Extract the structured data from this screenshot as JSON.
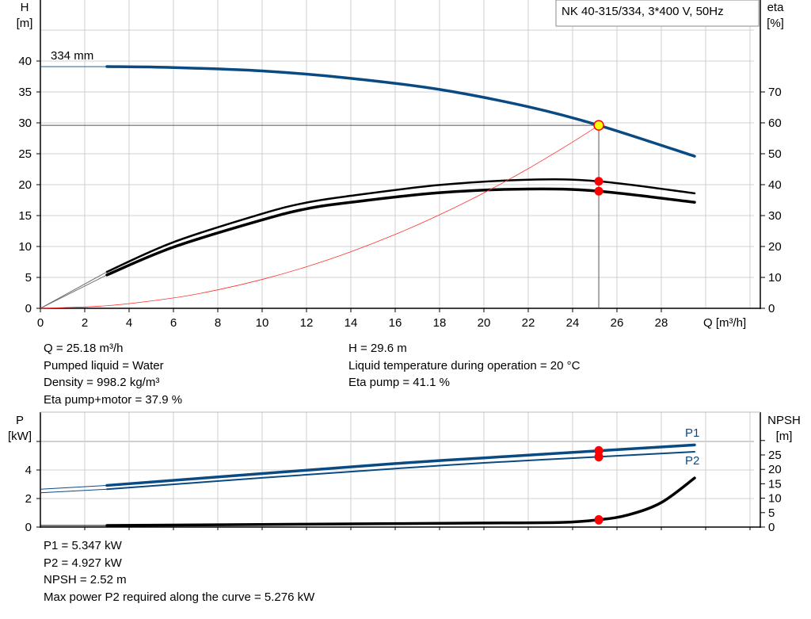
{
  "colors": {
    "head": "#0a4a82",
    "power": "#0a4a82",
    "eta": "#000000",
    "npsh": "#000000",
    "system": "#ff3030",
    "duty_point": "#ff0000",
    "duty_head_fill": "#ffff00",
    "grid": "#d0d0d0"
  },
  "chart_data": [
    {
      "type": "line",
      "title": "NK 40-315/334, 3*400 V, 50Hz",
      "xlabel": "Q [m³/h]",
      "ylabel_left": "H\n[m]",
      "ylabel_left_lines": [
        "H",
        "[m]"
      ],
      "ylabel_right_lines": [
        "eta",
        "[%]"
      ],
      "xlim": [
        0,
        32.2
      ],
      "ylim_left": [
        0,
        50
      ],
      "ylim_right": [
        0,
        100
      ],
      "x_ticks": [
        "0",
        "2",
        "4",
        "6",
        "8",
        "10",
        "12",
        "14",
        "16",
        "18",
        "20",
        "22",
        "24",
        "26",
        "28"
      ],
      "y_ticks_left": [
        "0",
        "5",
        "10",
        "15",
        "20",
        "25",
        "30",
        "35",
        "40"
      ],
      "y_ticks_right": [
        "0",
        "10",
        "20",
        "30",
        "40",
        "50",
        "60",
        "70"
      ],
      "grid": true,
      "impeller_label": "334 mm",
      "series": [
        {
          "key": "head",
          "axis": "left",
          "extension": [
            [
              0,
              39.1
            ],
            [
              3,
              39.1
            ]
          ],
          "points": [
            [
              3,
              39.1
            ],
            [
              6,
              38.95
            ],
            [
              10,
              38.4
            ],
            [
              14,
              37.2
            ],
            [
              18,
              35.4
            ],
            [
              22,
              32.6
            ],
            [
              25.18,
              29.6
            ],
            [
              29.5,
              24.6
            ]
          ]
        },
        {
          "key": "eta_pump",
          "axis": "right",
          "extension": [
            [
              0,
              0
            ],
            [
              3,
              11.8
            ]
          ],
          "points": [
            [
              3,
              11.8
            ],
            [
              6,
              21.4
            ],
            [
              10,
              30.6
            ],
            [
              12,
              34.2
            ],
            [
              14,
              36.4
            ],
            [
              18,
              39.9
            ],
            [
              22,
              41.6
            ],
            [
              25.18,
              41.1
            ],
            [
              29.5,
              37.2
            ]
          ]
        },
        {
          "key": "eta_pump_motor",
          "axis": "right",
          "extension": [
            [
              0,
              0
            ],
            [
              3,
              10.8
            ]
          ],
          "points": [
            [
              3,
              10.8
            ],
            [
              6,
              19.8
            ],
            [
              10,
              28.6
            ],
            [
              12,
              32.2
            ],
            [
              14,
              34.3
            ],
            [
              18,
              37.4
            ],
            [
              22,
              38.6
            ],
            [
              25.18,
              37.9
            ],
            [
              29.5,
              34.3
            ]
          ]
        },
        {
          "key": "system",
          "axis": "left",
          "points": [
            [
              0,
              0
            ],
            [
              3,
              0.42
            ],
            [
              6,
              1.68
            ],
            [
              8,
              2.99
            ],
            [
              10,
              4.67
            ],
            [
              12,
              6.72
            ],
            [
              14,
              9.15
            ],
            [
              16,
              11.95
            ],
            [
              18,
              15.13
            ],
            [
              20,
              18.67
            ],
            [
              22,
              22.6
            ],
            [
              24,
              26.9
            ],
            [
              25.18,
              29.6
            ]
          ]
        }
      ],
      "duty_point": {
        "q": 25.18,
        "h": 29.6,
        "eta_pump": 41.1,
        "eta_pump_motor": 37.9
      }
    },
    {
      "type": "line",
      "ylabel_left_lines": [
        "P",
        "[kW]"
      ],
      "ylabel_right_lines": [
        "NPSH",
        "[m]"
      ],
      "xlim": [
        0,
        32.2
      ],
      "ylim_left": [
        0,
        8
      ],
      "ylim_right": [
        0,
        40
      ],
      "y_ticks_left": [
        "0",
        "2",
        "4"
      ],
      "y_ticks_right": [
        "0",
        "5",
        "10",
        "15",
        "20",
        "25"
      ],
      "grid": true,
      "series": [
        {
          "key": "p1",
          "name": "P1",
          "axis": "left",
          "extension": [
            [
              0,
              2.65
            ],
            [
              3,
              2.92
            ]
          ],
          "points": [
            [
              3,
              2.92
            ],
            [
              10,
              3.75
            ],
            [
              16,
              4.45
            ],
            [
              20,
              4.85
            ],
            [
              25.18,
              5.347
            ],
            [
              29.5,
              5.76
            ]
          ]
        },
        {
          "key": "p2",
          "name": "P2",
          "axis": "left",
          "extension": [
            [
              0,
              2.4
            ],
            [
              3,
              2.65
            ]
          ],
          "points": [
            [
              3,
              2.65
            ],
            [
              10,
              3.45
            ],
            [
              16,
              4.1
            ],
            [
              20,
              4.5
            ],
            [
              25.18,
              4.927
            ],
            [
              29.5,
              5.28
            ]
          ]
        },
        {
          "key": "npsh",
          "axis": "right",
          "extension": [
            [
              0,
              0.55
            ],
            [
              3,
              0.55
            ]
          ],
          "points": [
            [
              3,
              0.55
            ],
            [
              8,
              0.8
            ],
            [
              14,
              1.1
            ],
            [
              20,
              1.4
            ],
            [
              23.5,
              1.6
            ],
            [
              25.18,
              2.52
            ],
            [
              26.5,
              4.2
            ],
            [
              28,
              8.5
            ],
            [
              29.5,
              17
            ]
          ]
        }
      ],
      "duty_point": {
        "q": 25.18,
        "p1": 5.347,
        "p2": 4.927,
        "npsh": 2.52
      }
    }
  ],
  "info_top": {
    "left": [
      "Q = 25.18 m³/h",
      "Pumped liquid = Water",
      "Density = 998.2 kg/m³",
      "Eta pump+motor = 37.9 %"
    ],
    "right": [
      "H = 29.6 m",
      "Liquid temperature during operation = 20 °C",
      "Eta pump = 41.1 %"
    ]
  },
  "info_bottom": [
    "P1 = 5.347 kW",
    "P2 = 4.927 kW",
    "NPSH = 2.52 m",
    "Max power P2 required along the curve = 5.276 kW"
  ]
}
